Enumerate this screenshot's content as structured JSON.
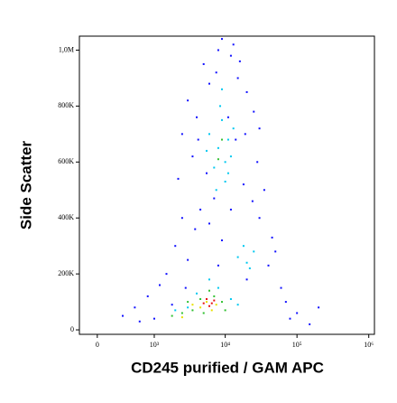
{
  "chart_data": {
    "type": "scatter",
    "x_label": "CD245 purified / GAM APC",
    "y_label": "Side Scatter",
    "xscale": "biexponential",
    "xlim": [
      -200,
      1200000
    ],
    "xticks": [
      0,
      {
        "value": 1000,
        "label": "10³"
      },
      {
        "value": 10000,
        "label": "10⁴"
      },
      {
        "value": 100000,
        "label": "10⁵"
      },
      {
        "value": 1000000,
        "label": "10⁶"
      }
    ],
    "ylim": [
      -16000,
      1050000
    ],
    "yticks": [
      0,
      {
        "value": 200000,
        "label": "200K"
      },
      {
        "value": 400000,
        "label": "400K"
      },
      {
        "value": 600000,
        "label": "600K"
      },
      {
        "value": 800000,
        "label": "800K"
      },
      {
        "value": 1000000,
        "label": "1,0M"
      }
    ],
    "series": [
      {
        "color": "#1010ff",
        "x": [
          5000,
          8000,
          12000,
          6000,
          15000,
          3000,
          20000,
          4000,
          25000,
          2500,
          30000,
          3500,
          28000,
          2200,
          35000,
          4500,
          6000,
          30000,
          2000,
          50000,
          1500,
          60000,
          800,
          100000,
          300,
          500,
          80000,
          1200,
          3000,
          9000,
          7000,
          18000,
          11000,
          14000,
          5500,
          40000,
          45000,
          2800,
          600,
          200000,
          150000,
          1000,
          9000,
          13000,
          16000,
          7500,
          19000,
          4200,
          24000,
          3800,
          12000,
          20000,
          2500,
          8000,
          1800,
          70000
        ],
        "values": [
          950000,
          1000000,
          980000,
          880000,
          900000,
          820000,
          850000,
          760000,
          780000,
          700000,
          720000,
          620000,
          600000,
          540000,
          500000,
          430000,
          380000,
          400000,
          300000,
          280000,
          200000,
          150000,
          120000,
          60000,
          50000,
          80000,
          40000,
          160000,
          250000,
          320000,
          470000,
          520000,
          760000,
          680000,
          560000,
          230000,
          330000,
          150000,
          30000,
          80000,
          20000,
          40000,
          1040000,
          1020000,
          960000,
          920000,
          700000,
          680000,
          460000,
          360000,
          430000,
          180000,
          400000,
          230000,
          90000,
          100000
        ]
      },
      {
        "color": "#00c8f0",
        "x": [
          6000,
          8000,
          10000,
          9000,
          7000,
          11000,
          12000,
          8500,
          5500,
          10000,
          13000,
          7500,
          15000,
          20000,
          25000,
          18000,
          22000,
          3000,
          4000,
          8000,
          12000,
          2000,
          15000,
          6000,
          9000,
          11000
        ],
        "values": [
          700000,
          650000,
          600000,
          750000,
          580000,
          680000,
          620000,
          800000,
          640000,
          530000,
          720000,
          500000,
          260000,
          240000,
          280000,
          300000,
          220000,
          80000,
          130000,
          150000,
          110000,
          70000,
          90000,
          180000,
          860000,
          560000
        ]
      },
      {
        "color": "#30c030",
        "x": [
          2500,
          3500,
          4500,
          5000,
          7000,
          9000,
          1800,
          3000,
          6000,
          10000,
          9000,
          8000
        ],
        "values": [
          60000,
          70000,
          110000,
          60000,
          120000,
          100000,
          50000,
          100000,
          140000,
          70000,
          680000,
          610000
        ]
      },
      {
        "color": "#e8e000",
        "x": [
          3500,
          4500,
          5500,
          7500,
          2500,
          6500
        ],
        "values": [
          90000,
          80000,
          100000,
          90000,
          45000,
          70000
        ]
      },
      {
        "color": "#e81010",
        "x": [
          5500,
          6500,
          7000,
          6000,
          5000
        ],
        "values": [
          110000,
          95000,
          105000,
          85000,
          95000
        ]
      }
    ]
  }
}
